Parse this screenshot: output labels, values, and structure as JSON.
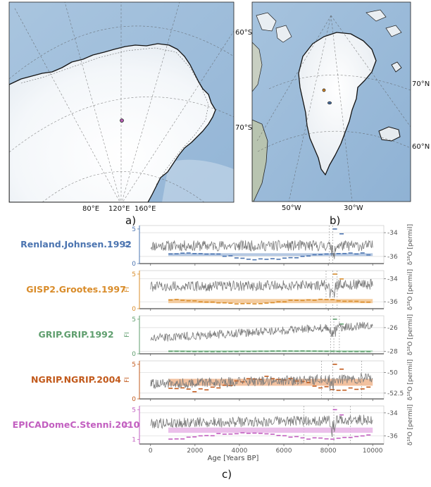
{
  "maps": [
    {
      "name": "antarctica",
      "lat_labels": [
        "60°S",
        "70°S"
      ],
      "lon_labels": [
        "80°E",
        "120°E",
        "160°E"
      ],
      "site_color": "#b85fb5"
    },
    {
      "name": "greenland",
      "lat_labels": [
        "70°N",
        "60°N"
      ],
      "lon_labels": [
        "50°W",
        "30°W"
      ],
      "site_colors": [
        "#d98c2a",
        "#4a6fa0"
      ]
    }
  ],
  "panel_labels": {
    "a": "a)",
    "b": "b)",
    "c": "c)"
  },
  "chart_data": {
    "type": "line",
    "x_label": "Age [Years BP]",
    "x_ticks": [
      0,
      2000,
      4000,
      6000,
      8000,
      10000
    ],
    "xlim": [
      -500,
      10500
    ],
    "left_axis_label": "FI",
    "right_axis_label": "δ¹⁸O [permil]",
    "series": [
      {
        "name": "Renland.Johnsen.1992",
        "color": "#4b74b0",
        "band_color": "#a9c0de",
        "fi_ticks": [
          0,
          5
        ],
        "fi_ylim": [
          0,
          5.5
        ],
        "d18o_ticks": [
          -34,
          -36
        ],
        "d18o_ylim": [
          -36.6,
          -33.4
        ],
        "d18o_mean": -35.1,
        "d18o_amp": 0.45,
        "d18o_trend": 0.0,
        "fi_band": [
          1.1,
          1.5
        ],
        "fi_mean": 1.1,
        "fi_amp": 0.5,
        "vlines": [
          8050,
          8200
        ]
      },
      {
        "name": "GISP2.Grootes.1997",
        "color": "#d98c2a",
        "band_color": "#f2c48f",
        "fi_ticks": [
          0,
          5
        ],
        "fi_ylim": [
          0,
          5.5
        ],
        "d18o_ticks": [
          -34,
          -36
        ],
        "d18o_ylim": [
          -36.6,
          -33.3
        ],
        "d18o_mean": -34.7,
        "d18o_amp": 0.45,
        "d18o_trend": 0.2,
        "fi_band": [
          0.8,
          1.4
        ],
        "fi_mean": 1.0,
        "fi_amp": 0.3,
        "vlines": [
          7900,
          8200,
          8400
        ]
      },
      {
        "name": "GRIP.GRIP.1992",
        "color": "#5f9e6e",
        "band_color": "#a9d4b3",
        "fi_ticks": [
          0,
          5
        ],
        "fi_ylim": [
          0,
          5.5
        ],
        "d18o_ticks": [
          -26,
          -28
        ],
        "d18o_ylim": [
          -28.2,
          -25.0
        ],
        "d18o_mean": -26.9,
        "d18o_amp": 0.35,
        "d18o_trend": 1.1,
        "fi_band": [
          0.25,
          0.5
        ],
        "fi_mean": 0.35,
        "fi_amp": 0.05,
        "vlines": [
          8100,
          8250,
          8500
        ]
      },
      {
        "name": "NGRIP.NGRIP.2004",
        "color": "#c25a1c",
        "band_color": "#f0b68e",
        "fi_ticks": [
          0,
          5
        ],
        "fi_ylim": [
          0,
          5.5
        ],
        "d18o_ticks": [
          -50.0,
          -52.5
        ],
        "d18o_ylim": [
          -53.2,
          -48.6
        ],
        "d18o_mean": -51.4,
        "d18o_amp": 0.6,
        "d18o_trend": 0.7,
        "fi_band": [
          1.9,
          2.9
        ],
        "fi_mean": 2.2,
        "fi_amp": 0.9,
        "vlines": [
          7700,
          8200,
          9500
        ]
      },
      {
        "name": "EPICADomeC.Stenni.2010",
        "color": "#c25fc0",
        "band_color": "#e8b5e6",
        "fi_ticks": [
          1,
          5
        ],
        "fi_ylim": [
          0.4,
          5.5
        ],
        "d18o_ticks": [
          -34,
          -36
        ],
        "d18o_ylim": [
          -36.7,
          -33.4
        ],
        "d18o_mean": -34.9,
        "d18o_amp": 0.45,
        "d18o_trend": 0.3,
        "fi_band": [
          1.9,
          2.6
        ],
        "fi_mean": 1.5,
        "fi_amp": 0.4,
        "vlines": [
          6900,
          8250,
          9000
        ]
      }
    ]
  }
}
